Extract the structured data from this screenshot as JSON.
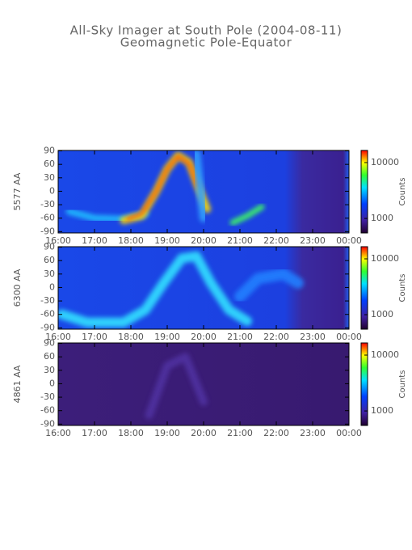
{
  "title": "All-Sky Imager at South Pole (2004-08-11)",
  "subtitle": "Geomagnetic Pole-Equator",
  "chart_data": [
    {
      "type": "heatmap",
      "ylabel": "5577 AA",
      "xlim": [
        16,
        24
      ],
      "xticks": [
        {
          "value": 16,
          "label": "16:00"
        },
        {
          "value": 17,
          "label": "17:00"
        },
        {
          "value": 18,
          "label": "18:00"
        },
        {
          "value": 19,
          "label": "19:00"
        },
        {
          "value": 20,
          "label": "20:00"
        },
        {
          "value": 21,
          "label": "21:00"
        },
        {
          "value": 22,
          "label": "22:00"
        },
        {
          "value": 23,
          "label": "23:00"
        },
        {
          "value": 24,
          "label": "00:00"
        }
      ],
      "ylim": [
        -93,
        91
      ],
      "yticks": [
        -90,
        -60,
        -30,
        0,
        30,
        60,
        90
      ],
      "colorbar_label": "Counts",
      "clim": [
        550,
        16500
      ],
      "colorbar_scale": "log",
      "colorbar_ticks": [
        1000,
        10000
      ]
    },
    {
      "type": "heatmap",
      "ylabel": "6300 AA",
      "xlim": [
        16,
        24
      ],
      "xticks": [
        {
          "value": 16,
          "label": "16:00"
        },
        {
          "value": 17,
          "label": "17:00"
        },
        {
          "value": 18,
          "label": "18:00"
        },
        {
          "value": 19,
          "label": "19:00"
        },
        {
          "value": 20,
          "label": "20:00"
        },
        {
          "value": 21,
          "label": "21:00"
        },
        {
          "value": 22,
          "label": "22:00"
        },
        {
          "value": 23,
          "label": "23:00"
        },
        {
          "value": 24,
          "label": "00:00"
        }
      ],
      "ylim": [
        -93,
        91
      ],
      "yticks": [
        -90,
        -60,
        -30,
        0,
        30,
        60,
        90
      ],
      "colorbar_label": "Counts",
      "clim": [
        550,
        16500
      ],
      "colorbar_scale": "log",
      "colorbar_ticks": [
        1000,
        10000
      ]
    },
    {
      "type": "heatmap",
      "ylabel": "4861 AA",
      "xlim": [
        16,
        24
      ],
      "xticks": [
        {
          "value": 16,
          "label": "16:00"
        },
        {
          "value": 17,
          "label": "17:00"
        },
        {
          "value": 18,
          "label": "18:00"
        },
        {
          "value": 19,
          "label": "19:00"
        },
        {
          "value": 20,
          "label": "20:00"
        },
        {
          "value": 21,
          "label": "21:00"
        },
        {
          "value": 22,
          "label": "22:00"
        },
        {
          "value": 23,
          "label": "23:00"
        },
        {
          "value": 24,
          "label": "00:00"
        }
      ],
      "ylim": [
        -93,
        91
      ],
      "yticks": [
        -90,
        -60,
        -30,
        0,
        30,
        60,
        90
      ],
      "colorbar_label": "Counts",
      "clim": [
        550,
        16500
      ],
      "colorbar_scale": "log",
      "colorbar_ticks": [
        1000,
        10000
      ]
    }
  ]
}
